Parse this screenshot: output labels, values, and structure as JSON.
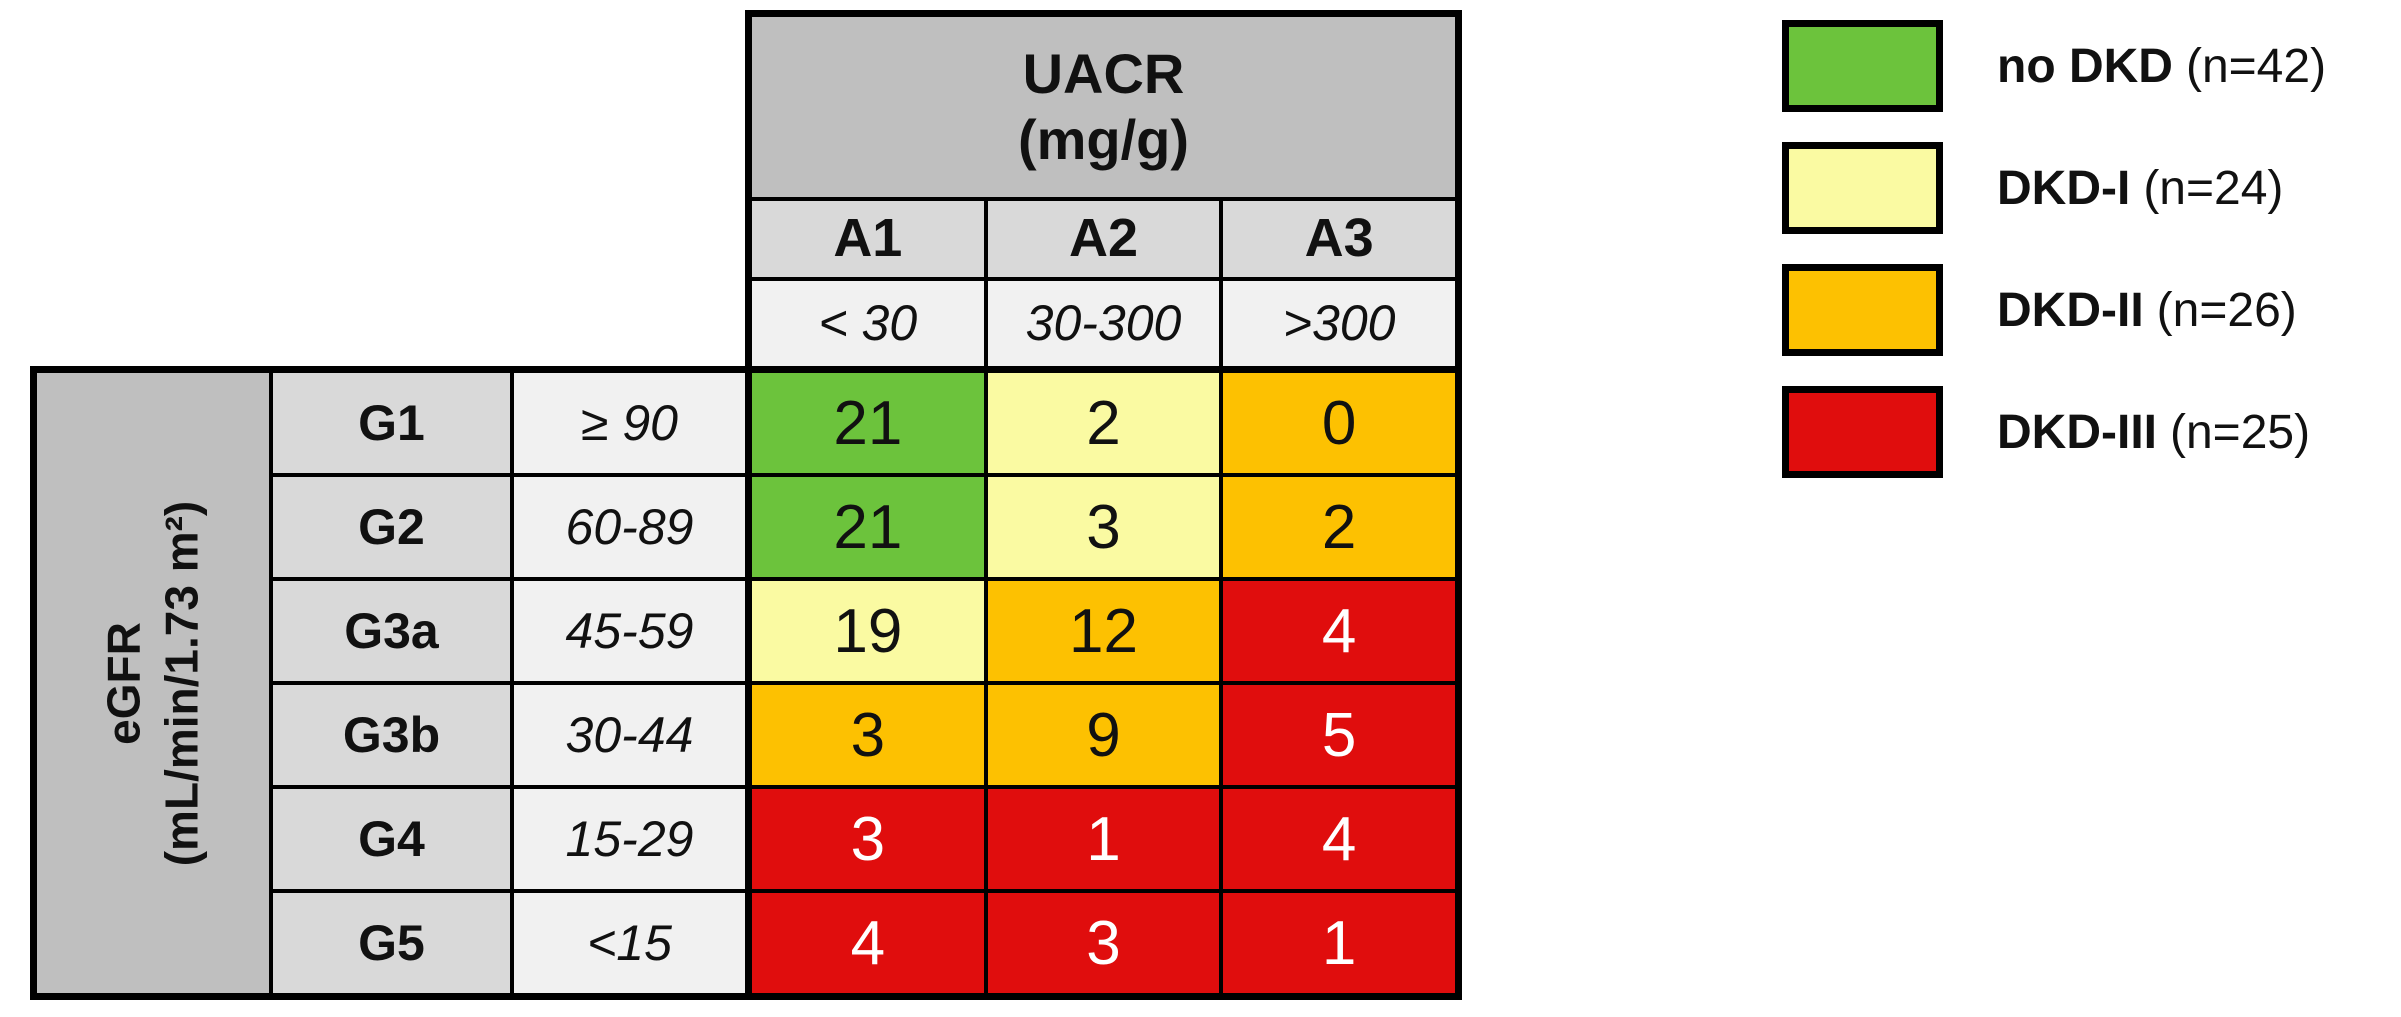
{
  "table": {
    "col_group_title": "UACR",
    "col_group_unit": "(mg/g)",
    "col_headers": [
      "A1",
      "A2",
      "A3"
    ],
    "col_ranges": [
      "< 30",
      "30-300",
      ">300"
    ],
    "row_group_title": "eGFR",
    "row_group_unit": "(mL/min/1.73 m²)",
    "rows": [
      {
        "g": "G1",
        "range": "≥ 90",
        "values": [
          21,
          2,
          0
        ],
        "cell_colors": [
          "green",
          "yellow",
          "orange"
        ]
      },
      {
        "g": "G2",
        "range": "60-89",
        "values": [
          21,
          3,
          2
        ],
        "cell_colors": [
          "green",
          "yellow",
          "orange"
        ]
      },
      {
        "g": "G3a",
        "range": "45-59",
        "values": [
          19,
          12,
          4
        ],
        "cell_colors": [
          "yellow",
          "orange",
          "red"
        ]
      },
      {
        "g": "G3b",
        "range": "30-44",
        "values": [
          3,
          9,
          5
        ],
        "cell_colors": [
          "orange",
          "orange",
          "red"
        ]
      },
      {
        "g": "G4",
        "range": "15-29",
        "values": [
          3,
          1,
          4
        ],
        "cell_colors": [
          "red",
          "red",
          "red"
        ]
      },
      {
        "g": "G5",
        "range": "<15",
        "values": [
          4,
          3,
          1
        ],
        "cell_colors": [
          "red",
          "red",
          "red"
        ]
      }
    ]
  },
  "legend": [
    {
      "label": "no DKD",
      "n": "(n=42)",
      "color": "green"
    },
    {
      "label": "DKD-I",
      "n": "(n=24)",
      "color": "yellow"
    },
    {
      "label": "DKD-II",
      "n": "(n=26)",
      "color": "orange"
    },
    {
      "label": "DKD-III",
      "n": "(n=25)",
      "color": "red"
    }
  ],
  "colors": {
    "green": "#6cc33c",
    "yellow": "#fafaa2",
    "orange": "#fdc101",
    "red": "#e00d0d",
    "group_header_gray": "#bfbfbf",
    "subheader_gray": "#d9d9d9",
    "range_gray": "#f1f1f1"
  },
  "chart_data": {
    "type": "heatmap",
    "title": "",
    "x_axis": {
      "title": "UACR (mg/g)",
      "categories": [
        "A1",
        "A2",
        "A3"
      ],
      "ranges": [
        "< 30",
        "30-300",
        ">300"
      ]
    },
    "y_axis": {
      "title": "eGFR (mL/min/1.73 m²)",
      "categories": [
        "G1",
        "G2",
        "G3a",
        "G3b",
        "G4",
        "G5"
      ],
      "ranges": [
        "≥ 90",
        "60-89",
        "45-59",
        "30-44",
        "15-29",
        "<15"
      ]
    },
    "values": [
      [
        21,
        2,
        0
      ],
      [
        21,
        3,
        2
      ],
      [
        19,
        12,
        4
      ],
      [
        3,
        9,
        5
      ],
      [
        3,
        1,
        4
      ],
      [
        4,
        3,
        1
      ]
    ],
    "cell_categories": [
      [
        "no DKD",
        "DKD-I",
        "DKD-II"
      ],
      [
        "no DKD",
        "DKD-I",
        "DKD-II"
      ],
      [
        "DKD-I",
        "DKD-II",
        "DKD-III"
      ],
      [
        "DKD-II",
        "DKD-II",
        "DKD-III"
      ],
      [
        "DKD-III",
        "DKD-III",
        "DKD-III"
      ],
      [
        "DKD-III",
        "DKD-III",
        "DKD-III"
      ]
    ],
    "legend": [
      {
        "label": "no DKD",
        "n": 42,
        "color": "#6cc33c"
      },
      {
        "label": "DKD-I",
        "n": 24,
        "color": "#fafaa2"
      },
      {
        "label": "DKD-II",
        "n": 26,
        "color": "#fdc101"
      },
      {
        "label": "DKD-III",
        "n": 25,
        "color": "#e00d0d"
      }
    ],
    "legend_position": "top-right",
    "grid": true
  }
}
